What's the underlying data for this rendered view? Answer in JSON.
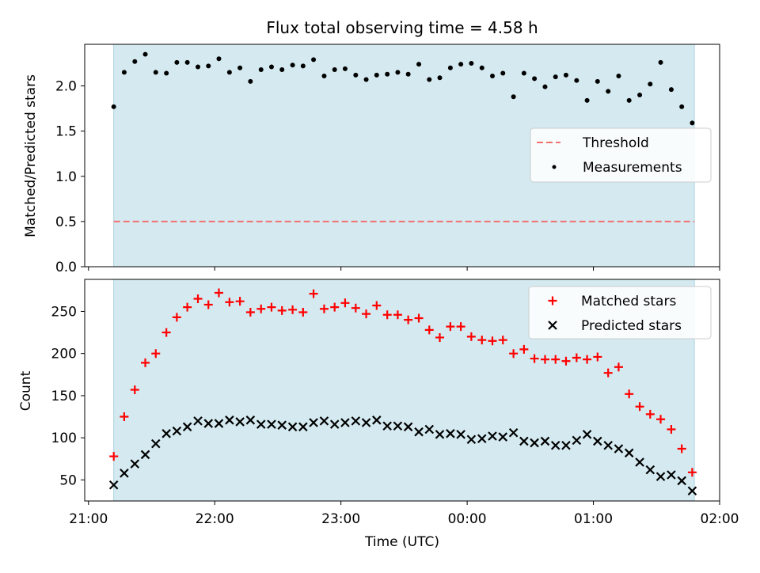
{
  "title": "Flux total observing time = 4.58 h",
  "chart_data": [
    {
      "type": "scatter",
      "xlabel": "",
      "ylabel": "Matched/Predicted stars",
      "x_ticks": [
        "21:00",
        "22:00",
        "23:00",
        "00:00",
        "01:00",
        "02:00"
      ],
      "x_tick_hours": [
        0,
        1,
        2,
        3,
        4,
        5
      ],
      "xlim_hours": [
        -0.03,
        5.0
      ],
      "ylim": [
        0,
        2.46
      ],
      "y_ticks": [
        "0.0",
        "0.5",
        "1.0",
        "1.5",
        "2.0"
      ],
      "shaded_span_hours": [
        0.2,
        4.8
      ],
      "threshold": 0.5,
      "threshold_span_hours": [
        0.2,
        4.8
      ],
      "legend": {
        "position": "center-right",
        "entries": [
          "Threshold",
          "Measurements"
        ]
      },
      "series": [
        {
          "name": "Measurements",
          "color": "#000000",
          "marker": "dot",
          "x_hours": [
            0.2,
            0.283,
            0.367,
            0.45,
            0.533,
            0.617,
            0.7,
            0.783,
            0.867,
            0.95,
            1.033,
            1.117,
            1.2,
            1.283,
            1.367,
            1.45,
            1.533,
            1.617,
            1.7,
            1.783,
            1.867,
            1.95,
            2.033,
            2.117,
            2.2,
            2.283,
            2.367,
            2.45,
            2.533,
            2.617,
            2.7,
            2.783,
            2.867,
            2.95,
            3.033,
            3.117,
            3.2,
            3.283,
            3.367,
            3.45,
            3.533,
            3.617,
            3.7,
            3.783,
            3.867,
            3.95,
            4.033,
            4.117,
            4.2,
            4.283,
            4.367,
            4.45,
            4.533,
            4.617,
            4.7,
            4.783
          ],
          "values": [
            1.77,
            2.15,
            2.27,
            2.35,
            2.15,
            2.14,
            2.26,
            2.26,
            2.21,
            2.22,
            2.3,
            2.15,
            2.2,
            2.05,
            2.18,
            2.21,
            2.18,
            2.23,
            2.22,
            2.29,
            2.11,
            2.18,
            2.19,
            2.12,
            2.07,
            2.12,
            2.13,
            2.15,
            2.13,
            2.24,
            2.07,
            2.09,
            2.2,
            2.24,
            2.25,
            2.2,
            2.11,
            2.14,
            1.88,
            2.14,
            2.08,
            1.99,
            2.1,
            2.12,
            2.06,
            1.84,
            2.05,
            1.94,
            2.11,
            1.84,
            1.9,
            2.02,
            2.26,
            1.96,
            1.77,
            1.59
          ]
        }
      ]
    },
    {
      "type": "scatter",
      "xlabel": "Time (UTC)",
      "ylabel": "Count",
      "x_ticks": [
        "21:00",
        "22:00",
        "23:00",
        "00:00",
        "01:00",
        "02:00"
      ],
      "x_tick_hours": [
        0,
        1,
        2,
        3,
        4,
        5
      ],
      "xlim_hours": [
        -0.03,
        5.0
      ],
      "ylim": [
        25,
        288
      ],
      "y_ticks": [
        "50",
        "100",
        "150",
        "200",
        "250"
      ],
      "y_tick_values": [
        50,
        100,
        150,
        200,
        250
      ],
      "shaded_span_hours": [
        0.2,
        4.8
      ],
      "legend": {
        "position": "top-right",
        "entries": [
          "Matched stars",
          "Predicted stars"
        ]
      },
      "series": [
        {
          "name": "Matched stars",
          "color": "#ff0000",
          "marker": "plus",
          "x_hours": [
            0.2,
            0.283,
            0.367,
            0.45,
            0.533,
            0.617,
            0.7,
            0.783,
            0.867,
            0.95,
            1.033,
            1.117,
            1.2,
            1.283,
            1.367,
            1.45,
            1.533,
            1.617,
            1.7,
            1.783,
            1.867,
            1.95,
            2.033,
            2.117,
            2.2,
            2.283,
            2.367,
            2.45,
            2.533,
            2.617,
            2.7,
            2.783,
            2.867,
            2.95,
            3.033,
            3.117,
            3.2,
            3.283,
            3.367,
            3.45,
            3.533,
            3.617,
            3.7,
            3.783,
            3.867,
            3.95,
            4.033,
            4.117,
            4.2,
            4.283,
            4.367,
            4.45,
            4.533,
            4.617,
            4.7,
            4.783
          ],
          "values": [
            78,
            125,
            157,
            189,
            200,
            225,
            243,
            255,
            265,
            258,
            272,
            261,
            262,
            249,
            253,
            255,
            251,
            252,
            249,
            271,
            253,
            255,
            260,
            254,
            247,
            257,
            246,
            246,
            240,
            242,
            228,
            219,
            232,
            232,
            220,
            216,
            215,
            216,
            200,
            205,
            194,
            193,
            193,
            191,
            195,
            193,
            196,
            177,
            184,
            152,
            137,
            128,
            122,
            110,
            87,
            59
          ]
        },
        {
          "name": "Predicted stars",
          "color": "#000000",
          "marker": "x",
          "x_hours": [
            0.2,
            0.283,
            0.367,
            0.45,
            0.533,
            0.617,
            0.7,
            0.783,
            0.867,
            0.95,
            1.033,
            1.117,
            1.2,
            1.283,
            1.367,
            1.45,
            1.533,
            1.617,
            1.7,
            1.783,
            1.867,
            1.95,
            2.033,
            2.117,
            2.2,
            2.283,
            2.367,
            2.45,
            2.533,
            2.617,
            2.7,
            2.783,
            2.867,
            2.95,
            3.033,
            3.117,
            3.2,
            3.283,
            3.367,
            3.45,
            3.533,
            3.617,
            3.7,
            3.783,
            3.867,
            3.95,
            4.033,
            4.117,
            4.2,
            4.283,
            4.367,
            4.45,
            4.533,
            4.617,
            4.7,
            4.783
          ],
          "values": [
            44,
            58,
            69,
            80,
            93,
            105,
            108,
            113,
            120,
            117,
            117,
            121,
            119,
            121,
            116,
            116,
            115,
            113,
            113,
            118,
            120,
            116,
            118,
            120,
            118,
            121,
            114,
            114,
            113,
            107,
            110,
            104,
            105,
            104,
            98,
            99,
            102,
            101,
            106,
            96,
            94,
            96,
            91,
            91,
            97,
            104,
            96,
            91,
            87,
            82,
            71,
            62,
            54,
            56,
            49,
            37
          ]
        }
      ]
    }
  ]
}
